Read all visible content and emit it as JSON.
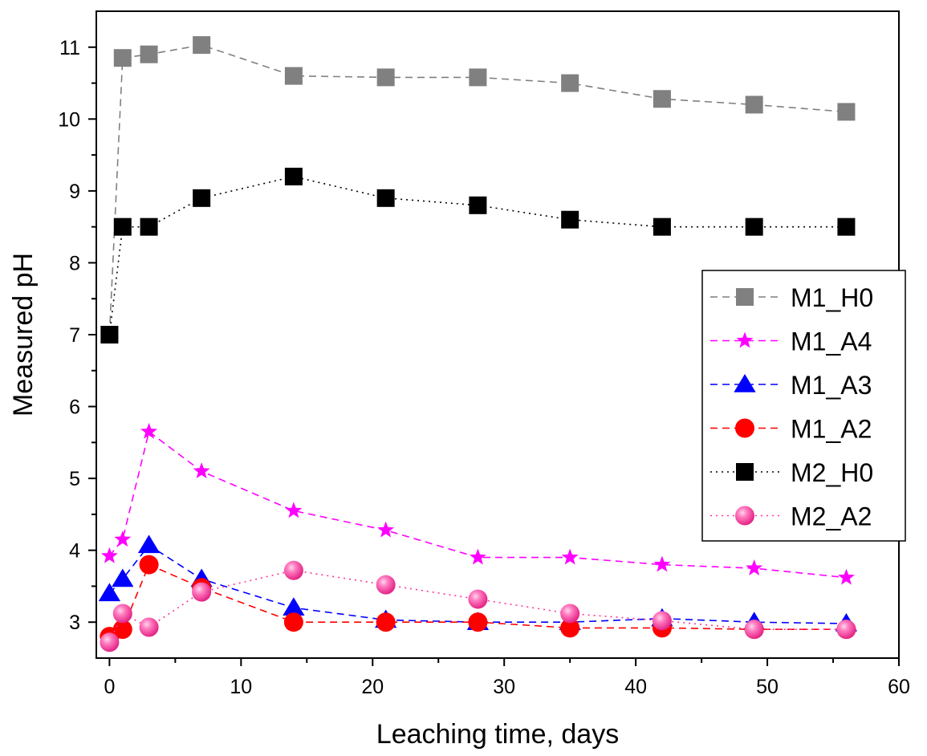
{
  "chart_data": {
    "type": "line",
    "xlabel": "Leaching time, days",
    "ylabel": "Measured pH",
    "xlim": [
      -1,
      60
    ],
    "ylim": [
      2.5,
      11.5
    ],
    "xticks": [
      0,
      10,
      20,
      30,
      40,
      50,
      60
    ],
    "yticks": [
      3,
      4,
      5,
      6,
      7,
      8,
      9,
      10,
      11
    ],
    "grid": false,
    "legend_position": "right",
    "series": [
      {
        "name": "M1_H0",
        "marker": "square",
        "color": "#808080",
        "line_style": "dashed",
        "x": [
          0,
          1,
          3,
          7,
          14,
          21,
          28,
          35,
          42,
          49,
          56
        ],
        "y": [
          7.0,
          10.85,
          10.9,
          11.03,
          10.6,
          10.58,
          10.58,
          10.5,
          10.28,
          10.2,
          10.1
        ]
      },
      {
        "name": "M1_A4",
        "marker": "star",
        "color": "#ff00ff",
        "line_style": "dashed",
        "x": [
          0,
          1,
          3,
          7,
          14,
          21,
          28,
          35,
          42,
          49,
          56
        ],
        "y": [
          3.92,
          4.15,
          5.65,
          5.1,
          4.55,
          4.28,
          3.9,
          3.9,
          3.8,
          3.75,
          3.62
        ]
      },
      {
        "name": "M1_A3",
        "marker": "triangle",
        "color": "#0000ff",
        "line_style": "dashed",
        "x": [
          0,
          1,
          3,
          7,
          14,
          21,
          28,
          35,
          42,
          49,
          56
        ],
        "y": [
          3.4,
          3.6,
          4.07,
          3.6,
          3.2,
          3.03,
          3.0,
          3.0,
          3.05,
          3.0,
          2.98
        ]
      },
      {
        "name": "M1_A2",
        "marker": "circle",
        "color": "#ff0000",
        "line_style": "dashed",
        "x": [
          0,
          1,
          3,
          7,
          14,
          21,
          28,
          35,
          42,
          49,
          56
        ],
        "y": [
          2.8,
          2.9,
          3.8,
          3.48,
          3.0,
          3.0,
          3.0,
          2.92,
          2.92,
          2.9,
          2.9
        ]
      },
      {
        "name": "M2_H0",
        "marker": "square",
        "color": "#000000",
        "line_style": "dotted",
        "x": [
          0,
          1,
          3,
          7,
          14,
          21,
          28,
          35,
          42,
          49,
          56
        ],
        "y": [
          7.0,
          8.5,
          8.5,
          8.9,
          9.2,
          8.9,
          8.8,
          8.6,
          8.5,
          8.5,
          8.5
        ]
      },
      {
        "name": "M2_A2",
        "marker": "sphere",
        "color": "#ff3399",
        "line_style": "dotted",
        "x": [
          0,
          1,
          3,
          7,
          14,
          21,
          28,
          35,
          42,
          49,
          56
        ],
        "y": [
          2.72,
          3.12,
          2.93,
          3.42,
          3.72,
          3.52,
          3.32,
          3.12,
          3.02,
          2.9,
          2.9
        ]
      }
    ]
  }
}
